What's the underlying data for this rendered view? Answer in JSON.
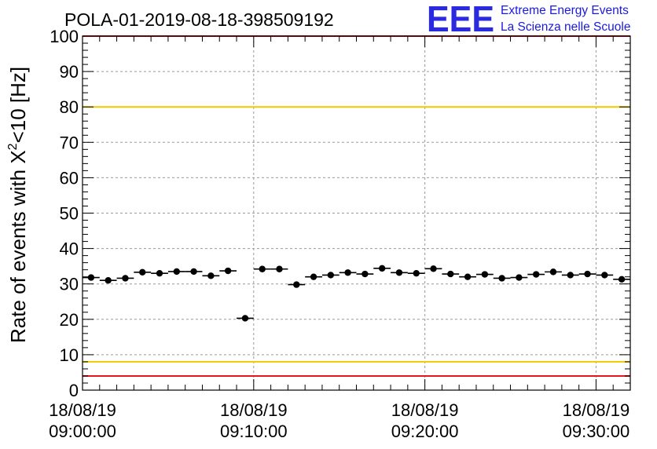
{
  "title": "POLA-01-2019-08-18-398509192",
  "logo": {
    "letters": "EEE",
    "line1": "Extreme Energy Events",
    "line2": "La Scienza nelle Scuole",
    "color": "#1a1adc"
  },
  "chart_data": {
    "type": "scatter",
    "ylabel_prefix": "Rate of events with X",
    "ylabel_sup": "2",
    "ylabel_suffix": "<10 [Hz]",
    "ylim": [
      0,
      100
    ],
    "yticks": [
      0,
      10,
      20,
      30,
      40,
      50,
      60,
      70,
      80,
      90,
      100
    ],
    "xlim_minutes": [
      0,
      32
    ],
    "xticks": [
      {
        "minute": 0,
        "date": "18/08/19",
        "time": "09:00:00"
      },
      {
        "minute": 10,
        "date": "18/08/19",
        "time": "09:10:00"
      },
      {
        "minute": 20,
        "date": "18/08/19",
        "time": "09:20:00"
      },
      {
        "minute": 30,
        "date": "18/08/19",
        "time": "09:30:00"
      }
    ],
    "grid": true,
    "bin_width_minutes": 1,
    "points": [
      {
        "x": 0.5,
        "y": 31.8
      },
      {
        "x": 1.5,
        "y": 31.0
      },
      {
        "x": 2.5,
        "y": 31.6
      },
      {
        "x": 3.5,
        "y": 33.3
      },
      {
        "x": 4.5,
        "y": 33.0
      },
      {
        "x": 5.5,
        "y": 33.5
      },
      {
        "x": 6.5,
        "y": 33.5
      },
      {
        "x": 7.5,
        "y": 32.3
      },
      {
        "x": 8.5,
        "y": 33.7
      },
      {
        "x": 9.5,
        "y": 20.3
      },
      {
        "x": 10.5,
        "y": 34.2
      },
      {
        "x": 11.5,
        "y": 34.2
      },
      {
        "x": 12.5,
        "y": 29.8
      },
      {
        "x": 13.5,
        "y": 32.0
      },
      {
        "x": 14.5,
        "y": 32.5
      },
      {
        "x": 15.5,
        "y": 33.2
      },
      {
        "x": 16.5,
        "y": 32.8
      },
      {
        "x": 17.5,
        "y": 34.4
      },
      {
        "x": 18.5,
        "y": 33.2
      },
      {
        "x": 19.5,
        "y": 33.0
      },
      {
        "x": 20.5,
        "y": 34.3
      },
      {
        "x": 21.5,
        "y": 32.8
      },
      {
        "x": 22.5,
        "y": 32.0
      },
      {
        "x": 23.5,
        "y": 32.7
      },
      {
        "x": 24.5,
        "y": 31.6
      },
      {
        "x": 25.5,
        "y": 31.8
      },
      {
        "x": 26.5,
        "y": 32.7
      },
      {
        "x": 27.5,
        "y": 33.4
      },
      {
        "x": 28.5,
        "y": 32.5
      },
      {
        "x": 29.5,
        "y": 32.8
      },
      {
        "x": 30.5,
        "y": 32.5
      },
      {
        "x": 31.5,
        "y": 31.3
      }
    ],
    "reference_lines": [
      {
        "y": 100,
        "color": "#e8141e"
      },
      {
        "y": 80,
        "color": "#f0c800"
      },
      {
        "y": 8,
        "color": "#f0c800"
      },
      {
        "y": 4,
        "color": "#e8141e"
      }
    ]
  }
}
